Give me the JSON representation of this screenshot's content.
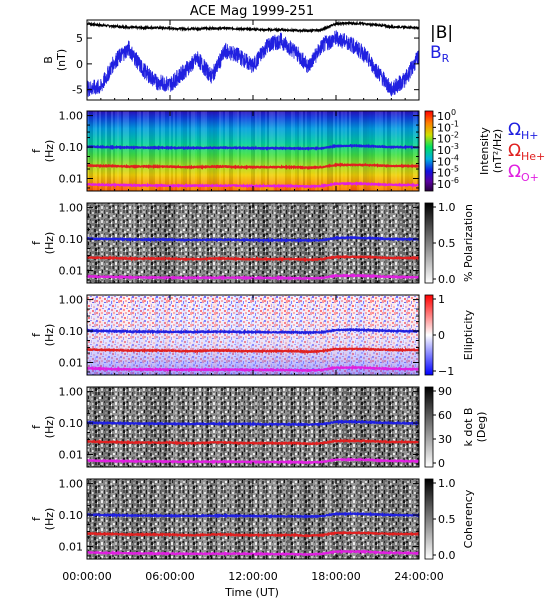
{
  "title": "ACE Mag 1999-251",
  "x_axis": {
    "label": "Time (UT)",
    "ticks": [
      "00:00:00",
      "06:00:00",
      "12:00:00",
      "18:00:00",
      "24:00:00"
    ]
  },
  "panels": [
    {
      "type": "line",
      "ylabel": "B",
      "yunit": "(nT)",
      "yticks": [
        "5",
        "0",
        "-5"
      ],
      "legend": [
        {
          "name": "|B|",
          "color": "#000000"
        },
        {
          "name": "B",
          "sub": "R",
          "color": "#2020e0"
        }
      ]
    },
    {
      "type": "spectrogram",
      "ylabel": "f",
      "yunit": "(Hz)",
      "yticks": [
        "1.00",
        "0.10",
        "0.01"
      ],
      "colorbar": {
        "palette": "rainbow",
        "title_lines": [
          "Intensity",
          "(nT²/Hz)"
        ],
        "ticks": [
          {
            "base": "10",
            "exp": "0"
          },
          {
            "base": "10",
            "exp": "-2"
          },
          {
            "base": "10",
            "exp": "-4"
          },
          {
            "base": "10",
            "exp": "-6"
          }
        ],
        "mid_ticks": [
          {
            "base": "10",
            "exp": "-1"
          },
          {
            "base": "10",
            "exp": "-3"
          },
          {
            "base": "10",
            "exp": "-5"
          }
        ]
      },
      "gyro_labels": [
        {
          "symbol": "Ω",
          "sub": "H+",
          "color": "#2020e0"
        },
        {
          "symbol": "Ω",
          "sub": "He+",
          "color": "#e02020"
        },
        {
          "symbol": "Ω",
          "sub": "O+",
          "color": "#e020e0"
        }
      ]
    },
    {
      "type": "spectrogram",
      "ylabel": "f",
      "yunit": "(Hz)",
      "yticks": [
        "1.00",
        "0.10",
        "0.01"
      ],
      "colorbar": {
        "palette": "gray",
        "title_lines": [
          "% Polarization"
        ],
        "ticks": [
          "1.0",
          "0.5",
          "0.0"
        ]
      }
    },
    {
      "type": "spectrogram",
      "ylabel": "f",
      "yunit": "(Hz)",
      "yticks": [
        "1.00",
        "0.10",
        "0.01"
      ],
      "colorbar": {
        "palette": "bwr",
        "title_lines": [
          "Ellipticity"
        ],
        "ticks": [
          "1",
          "0",
          "−1"
        ]
      }
    },
    {
      "type": "spectrogram",
      "ylabel": "f",
      "yunit": "(Hz)",
      "yticks": [
        "1.00",
        "0.10",
        "0.01"
      ],
      "colorbar": {
        "palette": "gray",
        "title_lines": [
          "k dot B",
          "(Deg)"
        ],
        "ticks": [
          "90",
          "60",
          "30",
          "0"
        ]
      }
    },
    {
      "type": "spectrogram",
      "ylabel": "f",
      "yunit": "(Hz)",
      "yticks": [
        "1.00",
        "0.10",
        "0.01"
      ],
      "colorbar": {
        "palette": "gray",
        "title_lines": [
          "Coherency"
        ],
        "ticks": [
          "1.0",
          "0.5",
          "0.0"
        ]
      }
    }
  ],
  "chart_data": {
    "type": "line",
    "title": "ACE Mag 1999-251",
    "xlabel": "Time (UT)",
    "xlim_hours": [
      0,
      24
    ],
    "x_hours": [
      0,
      1,
      2,
      3,
      4,
      5,
      6,
      7,
      8,
      9,
      10,
      11,
      12,
      13,
      14,
      15,
      16,
      17,
      18,
      19,
      20,
      21,
      22,
      23,
      24
    ],
    "top_panel": {
      "ylabel": "B (nT)",
      "ylim": [
        -7,
        8.5
      ],
      "series": [
        {
          "name": "|B|",
          "color": "#000000",
          "values": [
            7.8,
            7.5,
            7.3,
            7.1,
            7.0,
            7.0,
            6.9,
            6.8,
            6.8,
            6.9,
            6.9,
            6.8,
            6.7,
            6.6,
            6.6,
            6.5,
            6.4,
            6.6,
            7.8,
            7.9,
            7.8,
            7.5,
            7.2,
            7.1,
            7.0
          ]
        },
        {
          "name": "BR",
          "color": "#2020e0",
          "values": [
            -4.8,
            -4.5,
            0.5,
            3.0,
            -1.0,
            -3.5,
            -4.0,
            -1.5,
            1.0,
            -2.5,
            2.5,
            1.5,
            -0.5,
            3.5,
            4.5,
            2.5,
            -0.5,
            3.5,
            5.0,
            4.0,
            2.0,
            -1.5,
            -5.0,
            -3.0,
            1.5
          ]
        }
      ]
    },
    "gyrofrequency_lines_hz": {
      "H+": [
        0.103,
        0.101,
        0.099,
        0.097,
        0.096,
        0.096,
        0.095,
        0.094,
        0.094,
        0.095,
        0.095,
        0.094,
        0.093,
        0.092,
        0.092,
        0.091,
        0.09,
        0.092,
        0.108,
        0.11,
        0.108,
        0.104,
        0.1,
        0.099,
        0.098
      ],
      "He+": [
        0.026,
        0.025,
        0.025,
        0.024,
        0.024,
        0.024,
        0.024,
        0.023,
        0.023,
        0.024,
        0.024,
        0.023,
        0.023,
        0.023,
        0.023,
        0.023,
        0.022,
        0.023,
        0.027,
        0.027,
        0.027,
        0.026,
        0.025,
        0.025,
        0.025
      ],
      "O+": [
        0.0065,
        0.0063,
        0.0062,
        0.0061,
        0.006,
        0.006,
        0.0059,
        0.0059,
        0.0059,
        0.0059,
        0.0059,
        0.0059,
        0.0058,
        0.0058,
        0.0058,
        0.0057,
        0.0056,
        0.0058,
        0.0068,
        0.0069,
        0.0068,
        0.0065,
        0.0063,
        0.0062,
        0.0061
      ]
    },
    "spectrogram_ylim_hz": [
      0.004,
      1.4
    ],
    "log_y": true
  }
}
